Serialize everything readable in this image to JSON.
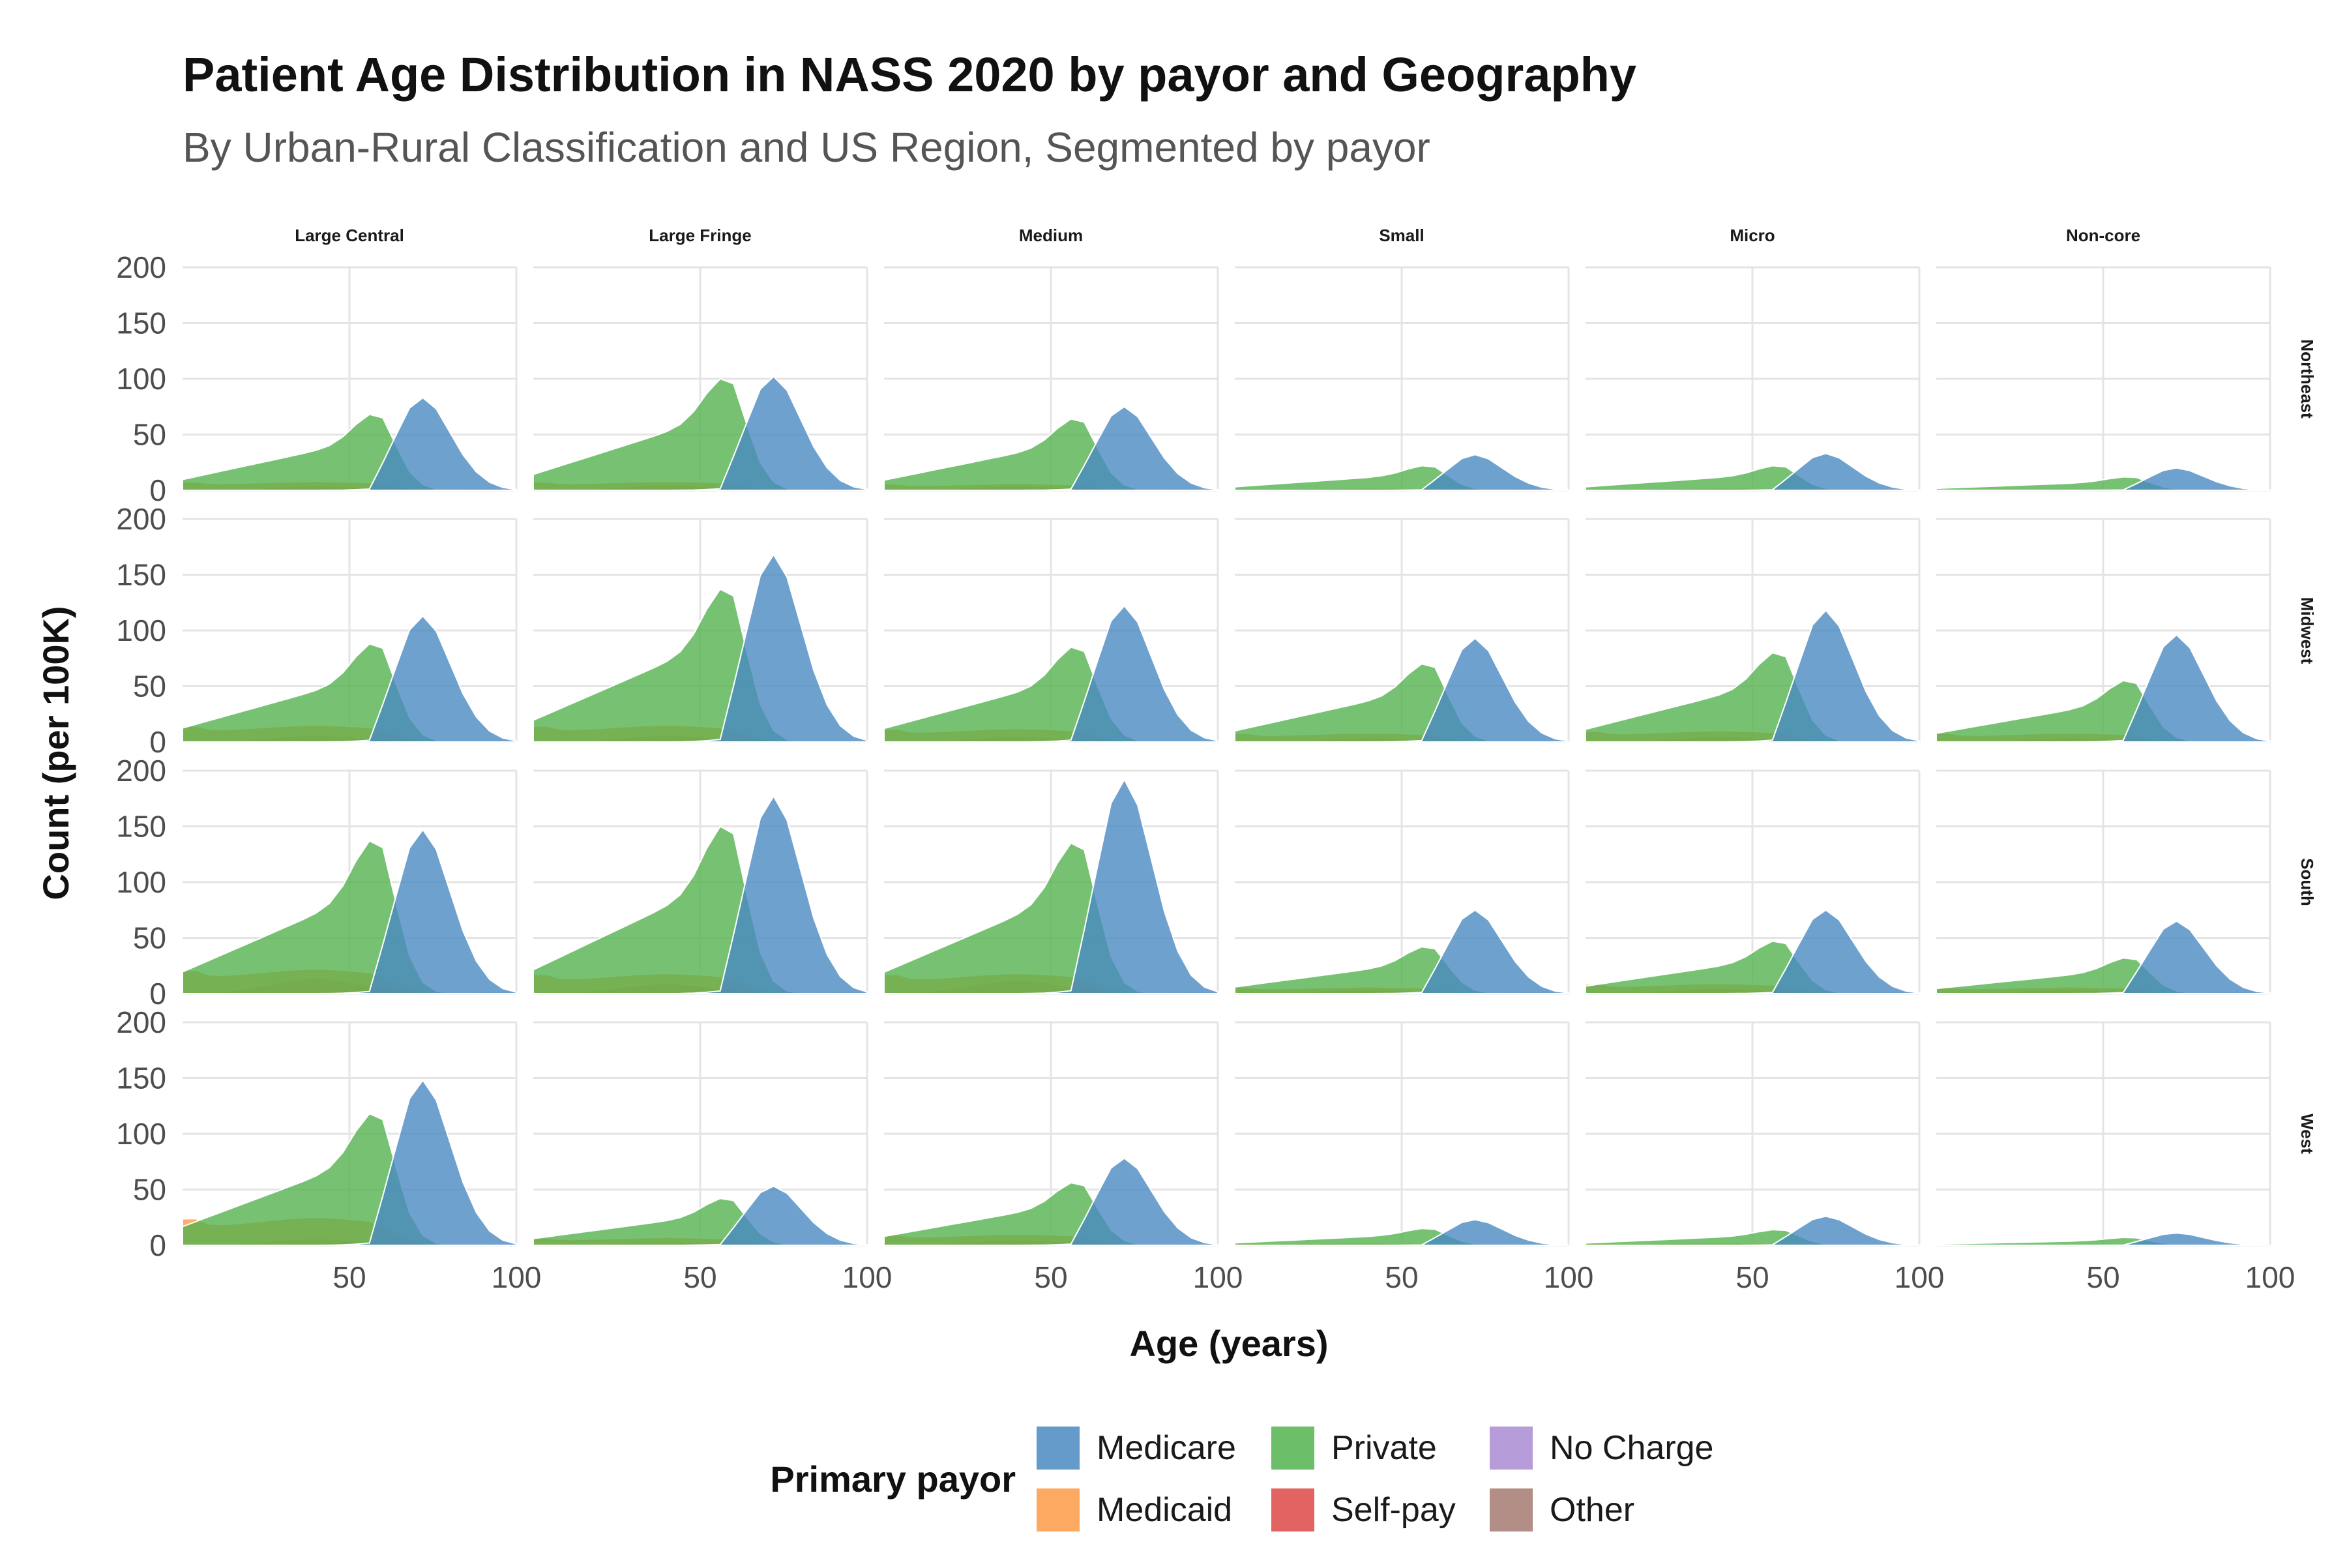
{
  "chart_data": {
    "type": "area",
    "title": "Patient Age Distribution in NASS 2020 by payor and Geography",
    "subtitle": "By Urban-Rural Classification and US Region, Segmented by payor",
    "xlabel": "Age (years)",
    "ylabel": "Count (per 100K)",
    "xlim": [
      0,
      100
    ],
    "ylim": [
      0,
      200
    ],
    "x_ticks": [
      50,
      100
    ],
    "x_tick_labels": [
      "50",
      "100"
    ],
    "y_ticks": [
      0,
      50,
      100,
      150,
      200
    ],
    "y_tick_labels": [
      "0",
      "50",
      "100",
      "150",
      "200"
    ],
    "columns": [
      "Large Central",
      "Large Fringe",
      "Medium",
      "Small",
      "Micro",
      "Non-core"
    ],
    "rows": [
      "Northeast",
      "Midwest",
      "South",
      "West"
    ],
    "legend": {
      "title": "Primary payor",
      "position": "bottom",
      "entries": [
        {
          "name": "Medicare",
          "color": "#4a8ac2"
        },
        {
          "name": "Private",
          "color": "#54b34f"
        },
        {
          "name": "No Charge",
          "color": "#a98bd2"
        },
        {
          "name": "Medicaid",
          "color": "#fd9a45"
        },
        {
          "name": "Self-pay",
          "color": "#dd4845"
        },
        {
          "name": "Other",
          "color": "#a67a71"
        }
      ]
    },
    "grid": true,
    "series_model": {
      "x": [
        0,
        4,
        8,
        12,
        16,
        20,
        24,
        28,
        32,
        36,
        40,
        44,
        48,
        52,
        56,
        60,
        64,
        68,
        72,
        76,
        80,
        84,
        88,
        92,
        96,
        100
      ],
      "panels": [
        {
          "row": "Northeast",
          "col": "Large Central",
          "medicare": 83,
          "private": 68,
          "medicaid": 8,
          "selfpay": 4,
          "other": 3
        },
        {
          "row": "Northeast",
          "col": "Large Fringe",
          "medicare": 102,
          "private": 100,
          "medicaid": 8,
          "selfpay": 5,
          "other": 3
        },
        {
          "row": "Northeast",
          "col": "Medium",
          "medicare": 75,
          "private": 64,
          "medicaid": 6,
          "selfpay": 4,
          "other": 3
        },
        {
          "row": "Northeast",
          "col": "Small",
          "medicare": 32,
          "private": 22,
          "medicaid": 2,
          "selfpay": 2,
          "other": 1
        },
        {
          "row": "Northeast",
          "col": "Micro",
          "medicare": 33,
          "private": 22,
          "medicaid": 2,
          "selfpay": 2,
          "other": 1
        },
        {
          "row": "Northeast",
          "col": "Non-core",
          "medicare": 20,
          "private": 12,
          "medicaid": 1,
          "selfpay": 1,
          "other": 1
        },
        {
          "row": "Midwest",
          "col": "Large Central",
          "medicare": 113,
          "private": 88,
          "medicaid": 15,
          "selfpay": 6,
          "other": 3
        },
        {
          "row": "Midwest",
          "col": "Large Fringe",
          "medicare": 168,
          "private": 137,
          "medicaid": 15,
          "selfpay": 6,
          "other": 4
        },
        {
          "row": "Midwest",
          "col": "Medium",
          "medicare": 122,
          "private": 85,
          "medicaid": 12,
          "selfpay": 5,
          "other": 3
        },
        {
          "row": "Midwest",
          "col": "Small",
          "medicare": 93,
          "private": 70,
          "medicaid": 8,
          "selfpay": 4,
          "other": 3
        },
        {
          "row": "Midwest",
          "col": "Micro",
          "medicare": 118,
          "private": 80,
          "medicaid": 10,
          "selfpay": 5,
          "other": 3
        },
        {
          "row": "Midwest",
          "col": "Non-core",
          "medicare": 96,
          "private": 55,
          "medicaid": 8,
          "selfpay": 4,
          "other": 2
        },
        {
          "row": "South",
          "col": "Large Central",
          "medicare": 147,
          "private": 137,
          "medicaid": 22,
          "selfpay": 14,
          "other": 5
        },
        {
          "row": "South",
          "col": "Large Fringe",
          "medicare": 177,
          "private": 150,
          "medicaid": 18,
          "selfpay": 9,
          "other": 4
        },
        {
          "row": "South",
          "col": "Medium",
          "medicare": 192,
          "private": 135,
          "medicaid": 18,
          "selfpay": 12,
          "other": 4
        },
        {
          "row": "South",
          "col": "Small",
          "medicare": 75,
          "private": 42,
          "medicaid": 6,
          "selfpay": 4,
          "other": 2
        },
        {
          "row": "South",
          "col": "Micro",
          "medicare": 75,
          "private": 47,
          "medicaid": 9,
          "selfpay": 5,
          "other": 2
        },
        {
          "row": "South",
          "col": "Non-core",
          "medicare": 65,
          "private": 32,
          "medicaid": 6,
          "selfpay": 4,
          "other": 2
        },
        {
          "row": "West",
          "col": "Large Central",
          "medicare": 148,
          "private": 118,
          "medicaid": 25,
          "selfpay": 6,
          "other": 4
        },
        {
          "row": "West",
          "col": "Large Fringe",
          "medicare": 53,
          "private": 42,
          "medicaid": 7,
          "selfpay": 3,
          "other": 2
        },
        {
          "row": "West",
          "col": "Medium",
          "medicare": 78,
          "private": 56,
          "medicaid": 10,
          "selfpay": 5,
          "other": 2
        },
        {
          "row": "West",
          "col": "Small",
          "medicare": 23,
          "private": 15,
          "medicaid": 2,
          "selfpay": 1,
          "other": 1
        },
        {
          "row": "West",
          "col": "Micro",
          "medicare": 26,
          "private": 14,
          "medicaid": 2,
          "selfpay": 1,
          "other": 1
        },
        {
          "row": "West",
          "col": "Non-core",
          "medicare": 11,
          "private": 7,
          "medicaid": 1,
          "selfpay": 1,
          "other": 1
        }
      ]
    }
  }
}
